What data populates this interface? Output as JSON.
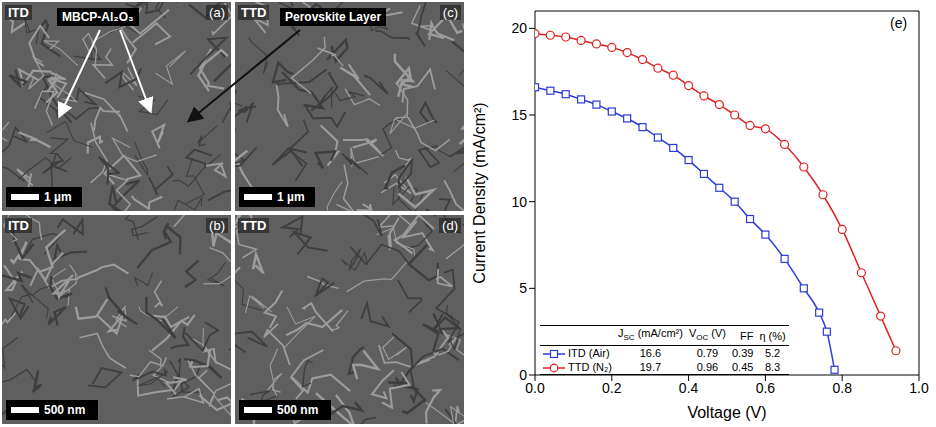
{
  "images": [
    {
      "label": "(a)",
      "sample": "ITD",
      "scale_bar": "1 µm",
      "annotation": "MBCP-Al₂O₃"
    },
    {
      "label": "(b)",
      "sample": "ITD",
      "scale_bar": "500 nm"
    },
    {
      "label": "(c)",
      "sample": "TTD",
      "scale_bar": "1 µm",
      "annotation": "Perovskite Layer"
    },
    {
      "label": "(d)",
      "sample": "TTD",
      "scale_bar": "500 nm"
    }
  ],
  "chart_data": {
    "type": "line",
    "panel_label": "(e)",
    "x_label": "Voltage (V)",
    "y_label": "Current Density (mA/cm²)",
    "xlim": [
      0,
      1
    ],
    "xticks": [
      {
        "value": 0,
        "label": "0.0"
      },
      0.2,
      0.4,
      0.6,
      0.8,
      {
        "value": 1,
        "label": "1.0"
      }
    ],
    "ylim": [
      0,
      21
    ],
    "yticks": [
      0,
      5,
      10,
      15,
      20
    ],
    "table_columns": [
      {
        "main": "J",
        "sub": "SC",
        "unit": "(mA/cm²)"
      },
      {
        "main": "V",
        "sub": "OC",
        "unit": "(V)"
      },
      {
        "main": "FF"
      },
      {
        "main": "η",
        "unit": "(%)"
      }
    ],
    "series": [
      {
        "name": "ITD (Air)",
        "color": "#2b3bd8",
        "marker": "square",
        "x": [
          0,
          0.04,
          0.08,
          0.12,
          0.16,
          0.2,
          0.24,
          0.28,
          0.32,
          0.36,
          0.4,
          0.44,
          0.48,
          0.52,
          0.56,
          0.6,
          0.65,
          0.7,
          0.74,
          0.76,
          0.78
        ],
        "values": [
          16.6,
          16.4,
          16.2,
          15.9,
          15.6,
          15.2,
          14.8,
          14.3,
          13.7,
          13.1,
          12.4,
          11.6,
          10.8,
          10.0,
          9.0,
          8.1,
          6.7,
          5.0,
          3.6,
          2.5,
          0.3
        ],
        "summary": [
          16.6,
          0.79,
          0.39,
          5.2
        ]
      },
      {
        "name": "TTD (N₂)",
        "color": "#e02020",
        "marker": "circle",
        "x": [
          0,
          0.04,
          0.08,
          0.12,
          0.16,
          0.2,
          0.24,
          0.28,
          0.32,
          0.36,
          0.4,
          0.44,
          0.48,
          0.52,
          0.56,
          0.6,
          0.65,
          0.7,
          0.75,
          0.8,
          0.85,
          0.9,
          0.94
        ],
        "values": [
          19.7,
          19.6,
          19.5,
          19.3,
          19.1,
          18.9,
          18.6,
          18.2,
          17.7,
          17.3,
          16.7,
          16.1,
          15.6,
          15.0,
          14.4,
          14.2,
          13.3,
          12.0,
          10.4,
          8.4,
          5.9,
          3.4,
          1.4
        ],
        "summary": [
          19.7,
          0.96,
          0.45,
          8.3
        ]
      }
    ]
  }
}
